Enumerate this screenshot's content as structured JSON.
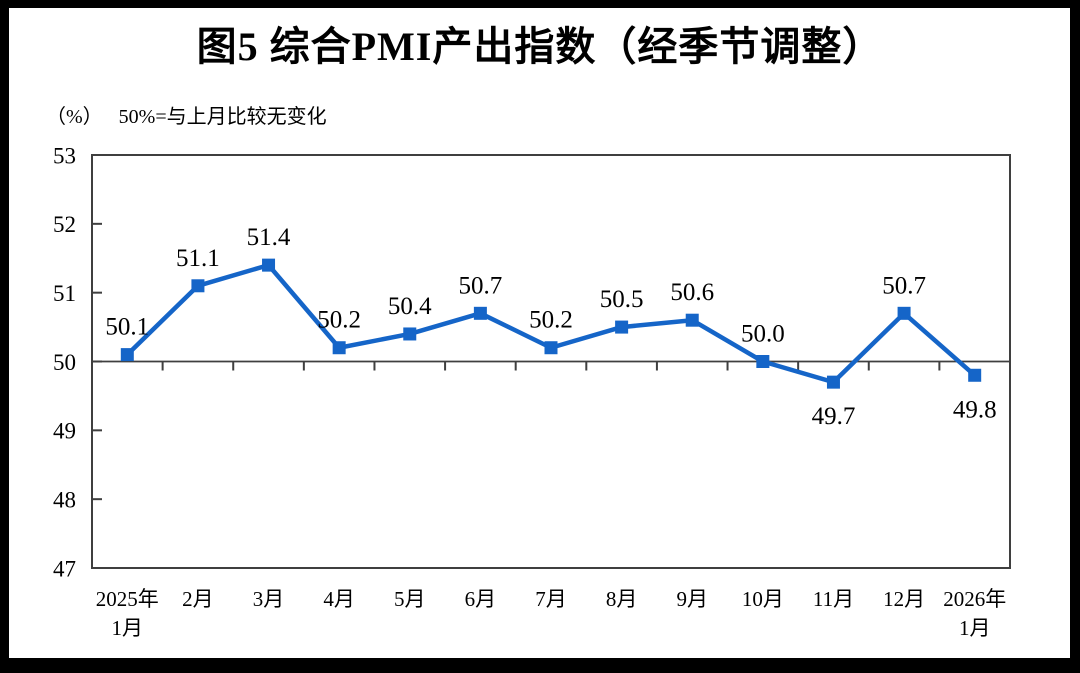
{
  "frame": {
    "background": "#000000",
    "page_background": "#ffffff"
  },
  "chart_data": {
    "type": "line",
    "title": "图5 综合PMI产出指数（经季节调整）",
    "unit_label": "（%）",
    "note": "50%=与上月比较无变化",
    "categories": [
      [
        "2025年",
        "1月"
      ],
      [
        "2月"
      ],
      [
        "3月"
      ],
      [
        "4月"
      ],
      [
        "5月"
      ],
      [
        "6月"
      ],
      [
        "7月"
      ],
      [
        "8月"
      ],
      [
        "9月"
      ],
      [
        "10月"
      ],
      [
        "11月"
      ],
      [
        "12月"
      ],
      [
        "2026年",
        "1月"
      ]
    ],
    "series": [
      {
        "name": "综合PMI产出指数",
        "values": [
          50.1,
          51.1,
          51.4,
          50.2,
          50.4,
          50.7,
          50.2,
          50.5,
          50.6,
          50.0,
          49.7,
          50.7,
          49.8
        ]
      }
    ],
    "data_labels": [
      "50.1",
      "51.1",
      "51.4",
      "50.2",
      "50.4",
      "50.7",
      "50.2",
      "50.5",
      "50.6",
      "50.0",
      "49.7",
      "50.7",
      "49.8"
    ],
    "label_placement": [
      "above",
      "above",
      "above",
      "above",
      "above",
      "above",
      "above",
      "above",
      "above",
      "above",
      "below",
      "above",
      "below"
    ],
    "ylim": [
      47,
      53
    ],
    "yticks": [
      53,
      52,
      51,
      50,
      49,
      48,
      47
    ],
    "reference_line": 50,
    "grid": "off",
    "legend": "none",
    "colors": {
      "line": "#1565C8",
      "marker": "#1565C8",
      "axis": "#3F3F3F",
      "text": "#000000"
    }
  }
}
